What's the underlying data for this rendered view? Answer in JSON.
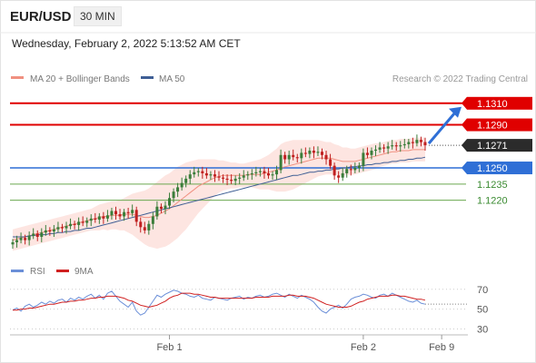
{
  "header": {
    "pair": "EUR/USD",
    "timeframe": "30 MIN",
    "datetime": "Wednesday, February 2, 2022 5:13:52 AM CET"
  },
  "legend": {
    "bollinger": "MA 20 + Bollinger Bands",
    "ma50": "MA 50",
    "credit": "Research © 2022 Trading Central",
    "rsi": "RSI",
    "ma9": "9MA"
  },
  "colors": {
    "resistance": "#e00000",
    "support": "#2f6fd6",
    "target": "#2f6fd6",
    "candle_up": "#3a7d3a",
    "candle_down": "#c02020",
    "ma50": "#3f5f95",
    "ma20": "#f09080",
    "bands": "#fde0dc",
    "rsi": "#6b8fd8",
    "ma9": "#d02020",
    "minor_level": "#6aa84f",
    "last_price": "#2b2b2b"
  },
  "chart_data": [
    {
      "type": "candlestick",
      "ylim": [
        1.117,
        1.1325
      ],
      "levels": [
        {
          "label": "1.1310",
          "value": 1.131,
          "kind": "resistance"
        },
        {
          "label": "1.1290",
          "value": 1.129,
          "kind": "resistance"
        },
        {
          "label": "1.1271",
          "value": 1.1271,
          "kind": "last"
        },
        {
          "label": "1.1250",
          "value": 1.125,
          "kind": "support"
        },
        {
          "label": "1.1235",
          "value": 1.1235,
          "kind": "minor"
        },
        {
          "label": "1.1220",
          "value": 1.122,
          "kind": "minor"
        }
      ],
      "close": [
        1.1181,
        1.1183,
        1.1185,
        1.1183,
        1.1187,
        1.1189,
        1.1186,
        1.119,
        1.1192,
        1.1191,
        1.1193,
        1.1195,
        1.1194,
        1.1196,
        1.1198,
        1.1197,
        1.12,
        1.1199,
        1.1201,
        1.1203,
        1.1202,
        1.1205,
        1.1203,
        1.1206,
        1.121,
        1.1207,
        1.1205,
        1.1209,
        1.1208,
        1.1211,
        1.12,
        1.1195,
        1.1192,
        1.1198,
        1.1205,
        1.1214,
        1.1212,
        1.1215,
        1.1222,
        1.1228,
        1.1232,
        1.1236,
        1.124,
        1.1244,
        1.1246,
        1.1247,
        1.1245,
        1.1243,
        1.1244,
        1.1242,
        1.1241,
        1.124,
        1.1239,
        1.1238,
        1.124,
        1.1241,
        1.1243,
        1.1244,
        1.1245,
        1.1246,
        1.1247,
        1.1245,
        1.1243,
        1.1244,
        1.1248,
        1.1262,
        1.1258,
        1.1262,
        1.126,
        1.1259,
        1.1264,
        1.1263,
        1.1266,
        1.1264,
        1.1265,
        1.1262,
        1.1258,
        1.1252,
        1.1243,
        1.1241,
        1.1245,
        1.1249,
        1.1248,
        1.125,
        1.1252,
        1.1264,
        1.1262,
        1.1266,
        1.1267,
        1.1269,
        1.1268,
        1.127,
        1.1271,
        1.127,
        1.1271,
        1.1272,
        1.1274,
        1.1273,
        1.1276,
        1.1274,
        1.1271
      ],
      "ma50": [
        1.1186,
        1.1186,
        1.1186,
        1.1186,
        1.1187,
        1.1187,
        1.1188,
        1.1188,
        1.1188,
        1.1189,
        1.1189,
        1.119,
        1.119,
        1.1191,
        1.1191,
        1.1192,
        1.1192,
        1.1193,
        1.1194,
        1.1194,
        1.1195,
        1.1196,
        1.1197,
        1.1198,
        1.1199,
        1.12,
        1.1201,
        1.1202,
        1.1203,
        1.1204,
        1.1205,
        1.1206,
        1.1207,
        1.1208,
        1.1209,
        1.121,
        1.1211,
        1.1212,
        1.1213,
        1.1214,
        1.1215,
        1.1216,
        1.1217,
        1.1218,
        1.1219,
        1.122,
        1.1221,
        1.1222,
        1.1223,
        1.1224,
        1.1225,
        1.1226,
        1.1227,
        1.1228,
        1.1229,
        1.123,
        1.1231,
        1.1232,
        1.1233,
        1.1234,
        1.1235,
        1.1236,
        1.1237,
        1.1238,
        1.1239,
        1.124,
        1.1241,
        1.1242,
        1.1243,
        1.1243,
        1.1244,
        1.1245,
        1.1246,
        1.1246,
        1.1247,
        1.1247,
        1.1248,
        1.1248,
        1.1249,
        1.1249,
        1.125,
        1.125,
        1.1251,
        1.1251,
        1.1252,
        1.1252,
        1.1253,
        1.1253,
        1.1254,
        1.1254,
        1.1255,
        1.1255,
        1.1256,
        1.1256,
        1.1257,
        1.1257,
        1.1258,
        1.1258,
        1.1259,
        1.1259,
        1.126
      ],
      "ma20": [
        1.1183,
        1.1184,
        1.1185,
        1.1186,
        1.1187,
        1.1188,
        1.1189,
        1.119,
        1.1191,
        1.1192,
        1.1193,
        1.1194,
        1.1195,
        1.1196,
        1.1197,
        1.1198,
        1.1199,
        1.12,
        1.1201,
        1.1202,
        1.1203,
        1.1204,
        1.1205,
        1.1205,
        1.1206,
        1.1206,
        1.1206,
        1.1207,
        1.1207,
        1.1207,
        1.1206,
        1.1205,
        1.1204,
        1.1204,
        1.1205,
        1.1206,
        1.1208,
        1.121,
        1.1212,
        1.1215,
        1.1218,
        1.1221,
        1.1224,
        1.1227,
        1.123,
        1.1233,
        1.1235,
        1.1237,
        1.1239,
        1.1241,
        1.1242,
        1.1243,
        1.1243,
        1.1243,
        1.1243,
        1.1243,
        1.1243,
        1.1244,
        1.1244,
        1.1244,
        1.1244,
        1.1245,
        1.1246,
        1.1247,
        1.1248,
        1.125,
        1.1251,
        1.1252,
        1.1253,
        1.1254,
        1.1255,
        1.1256,
        1.1257,
        1.1258,
        1.1259,
        1.1259,
        1.1259,
        1.1259,
        1.1258,
        1.1257,
        1.1256,
        1.1256,
        1.1256,
        1.1256,
        1.1257,
        1.1258,
        1.1259,
        1.126,
        1.1261,
        1.1262,
        1.1263,
        1.1264,
        1.1265,
        1.1265,
        1.1266,
        1.1266,
        1.1266,
        1.1267,
        1.1267,
        1.1267,
        1.1267
      ],
      "band_width": [
        0.001,
        0.001,
        0.001,
        0.001,
        0.001,
        0.001,
        0.001,
        0.001,
        0.001,
        0.001,
        0.001,
        0.001,
        0.001,
        0.001,
        0.001,
        0.001,
        0.001,
        0.001,
        0.001,
        0.001,
        0.0011,
        0.0012,
        0.0012,
        0.0013,
        0.0013,
        0.0013,
        0.0014,
        0.0015,
        0.0017,
        0.0019,
        0.0021,
        0.0023,
        0.0025,
        0.0027,
        0.0029,
        0.0031,
        0.0032,
        0.0033,
        0.0033,
        0.0033,
        0.0033,
        0.0032,
        0.0031,
        0.0029,
        0.0027,
        0.0025,
        0.0023,
        0.0021,
        0.0019,
        0.0017,
        0.0015,
        0.0014,
        0.0013,
        0.0012,
        0.0012,
        0.0011,
        0.0011,
        0.0011,
        0.0012,
        0.0013,
        0.0014,
        0.0015,
        0.0016,
        0.0018,
        0.002,
        0.0022,
        0.0023,
        0.0023,
        0.0023,
        0.0022,
        0.0021,
        0.002,
        0.0019,
        0.0018,
        0.0017,
        0.0016,
        0.0015,
        0.0015,
        0.0014,
        0.0014,
        0.0013,
        0.0013,
        0.0012,
        0.0012,
        0.0012,
        0.0012,
        0.0012,
        0.0012,
        0.0012,
        0.0011,
        0.0011,
        0.0011,
        0.0011,
        0.0011,
        0.0011,
        0.0011,
        0.0011,
        0.0011,
        0.0011,
        0.0011,
        0.0011
      ],
      "x_ticks": [
        {
          "label": "Feb 1",
          "index": 38
        },
        {
          "label": "Feb 2",
          "index": 85
        },
        {
          "label": "Feb 9",
          "index": 104
        }
      ],
      "target_arrow": {
        "from": 1.1271,
        "to": 1.131
      }
    },
    {
      "type": "line",
      "ylim": [
        25,
        78
      ],
      "y_ticks": [
        {
          "label": "70",
          "value": 70
        },
        {
          "label": "50",
          "value": 50
        },
        {
          "label": "30",
          "value": 30
        }
      ],
      "series": [
        {
          "name": "RSI",
          "values": [
            49,
            51,
            48,
            53,
            55,
            52,
            54,
            57,
            55,
            58,
            56,
            59,
            60,
            57,
            61,
            59,
            62,
            60,
            63,
            65,
            61,
            64,
            60,
            66,
            68,
            63,
            58,
            55,
            52,
            57,
            48,
            44,
            46,
            52,
            58,
            64,
            62,
            65,
            67,
            69,
            68,
            66,
            65,
            63,
            62,
            64,
            61,
            60,
            59,
            62,
            61,
            60,
            59,
            61,
            62,
            63,
            60,
            62,
            61,
            63,
            64,
            62,
            63,
            65,
            66,
            64,
            62,
            65,
            63,
            61,
            64,
            62,
            60,
            57,
            52,
            48,
            46,
            50,
            52,
            54,
            51,
            55,
            60,
            62,
            63,
            65,
            64,
            62,
            61,
            64,
            65,
            63,
            66,
            64,
            62,
            60,
            58,
            57,
            59,
            56,
            55
          ]
        },
        {
          "name": "9MA",
          "values": [
            49,
            49,
            50,
            50,
            51,
            51,
            52,
            53,
            54,
            55,
            55,
            56,
            57,
            57,
            58,
            58,
            59,
            59,
            60,
            61,
            61,
            62,
            62,
            63,
            63,
            63,
            62,
            61,
            59,
            58,
            56,
            54,
            53,
            52,
            53,
            54,
            56,
            58,
            61,
            63,
            64,
            66,
            66,
            66,
            65,
            65,
            64,
            63,
            62,
            62,
            61,
            61,
            61,
            61,
            61,
            61,
            61,
            61,
            61,
            62,
            62,
            62,
            62,
            63,
            63,
            63,
            63,
            64,
            64,
            63,
            63,
            63,
            62,
            61,
            59,
            57,
            55,
            54,
            53,
            52,
            52,
            52,
            53,
            55,
            57,
            58,
            60,
            61,
            62,
            63,
            63,
            63,
            64,
            64,
            63,
            63,
            62,
            61,
            60,
            60,
            59
          ]
        }
      ]
    }
  ]
}
